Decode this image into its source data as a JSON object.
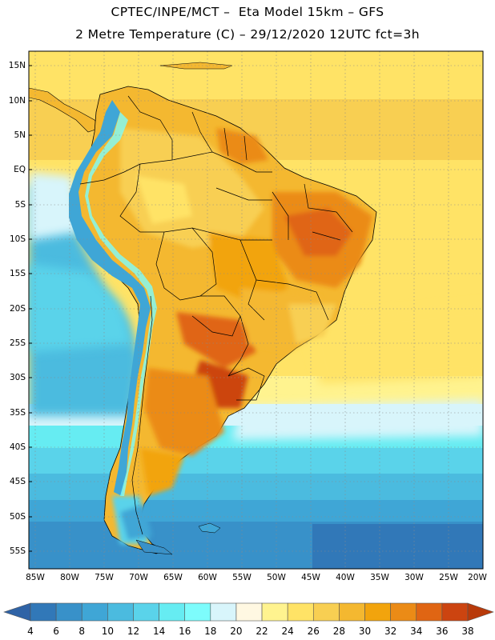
{
  "header": {
    "line1": "CPTEC/INPE/MCT –  Eta Model 15km – GFS",
    "line2": "2 Metre Temperature (C) – 29/12/2020 12UTC fct=3h"
  },
  "map": {
    "variable": "2 Metre Temperature",
    "unit": "C",
    "model": "Eta Model 15km – GFS",
    "date": "29/12/2020 12UTC",
    "forecast": "fct=3h",
    "lat_labels": [
      "15N",
      "10N",
      "5N",
      "EQ",
      "5S",
      "10S",
      "15S",
      "20S",
      "25S",
      "30S",
      "35S",
      "40S",
      "45S",
      "50S",
      "55S"
    ],
    "lon_labels": [
      "85W",
      "80W",
      "75W",
      "70W",
      "65W",
      "60W",
      "55W",
      "50W",
      "45W",
      "40W",
      "35W",
      "30W",
      "25W",
      "20W"
    ]
  },
  "colorbar": {
    "ticks": [
      "4",
      "6",
      "8",
      "10",
      "12",
      "14",
      "16",
      "18",
      "20",
      "22",
      "24",
      "26",
      "28",
      "30",
      "32",
      "34",
      "36",
      "38"
    ],
    "colors": [
      "#2f63a6",
      "#3178b8",
      "#3891c9",
      "#3fa6d6",
      "#4bbbdf",
      "#5ad3ea",
      "#66ecf2",
      "#7dfcfc",
      "#d8f5fb",
      "#fff8e2",
      "#fff38f",
      "#ffe366",
      "#f8cf52",
      "#f4b830",
      "#f2a40d",
      "#eb8b16",
      "#e06513",
      "#cc4410",
      "#b83a0a"
    ]
  }
}
